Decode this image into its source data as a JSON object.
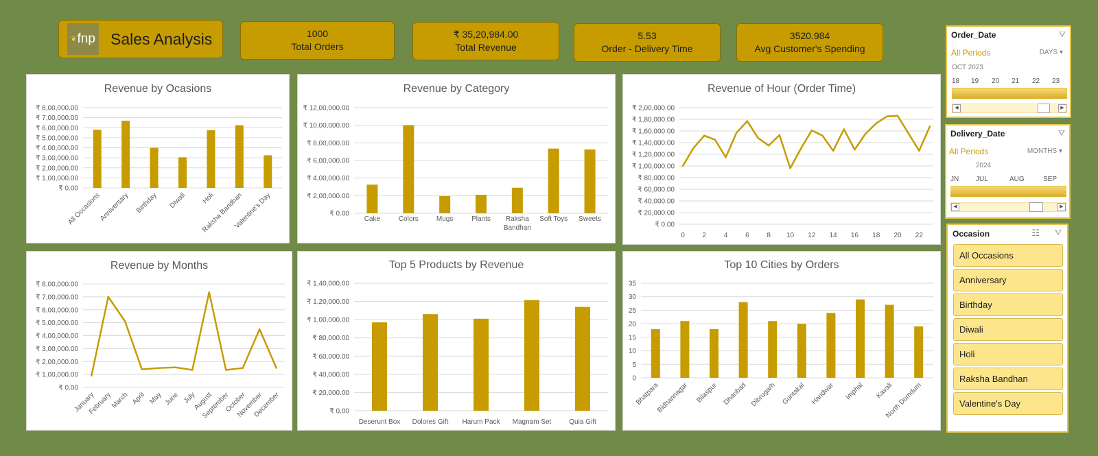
{
  "header": {
    "logo_text": "fnp",
    "title": "Sales Analysis"
  },
  "kpis": [
    {
      "value": "1000",
      "label": "Total Orders"
    },
    {
      "value": "₹ 35,20,984.00",
      "label": "Total Revenue"
    },
    {
      "value": "5.53",
      "label": "Order - Delivery Time"
    },
    {
      "value": "3520.984",
      "label": "Avg Customer's Spending"
    }
  ],
  "chart_data": [
    {
      "id": "occasions",
      "type": "bar",
      "title": "Revenue by Ocasions",
      "categories": [
        "All Occasions",
        "Anniversary",
        "Birthday",
        "Diwali",
        "Holi",
        "Raksha Bandhan",
        "Valentine's Day"
      ],
      "values": [
        580000,
        670000,
        400000,
        305000,
        575000,
        625000,
        325000
      ],
      "yticks": [
        "₹ 0.00",
        "₹ 1,00,000.00",
        "₹ 2,00,000.00",
        "₹ 3,00,000.00",
        "₹ 4,00,000.00",
        "₹ 5,00,000.00",
        "₹ 6,00,000.00",
        "₹ 7,00,000.00",
        "₹ 8,00,000.00"
      ],
      "ylim": [
        0,
        800000
      ],
      "grid": true,
      "color": "#c69c00"
    },
    {
      "id": "category",
      "type": "bar",
      "title": "Revenue by Category",
      "categories": [
        "Cake",
        "Colors",
        "Mugs",
        "Plants",
        "Raksha Bandhan",
        "Soft Toys",
        "Sweets"
      ],
      "values": [
        325000,
        1000000,
        195000,
        210000,
        290000,
        735000,
        725000
      ],
      "yticks": [
        "₹ 0.00",
        "₹ 2,00,000.00",
        "₹ 4,00,000.00",
        "₹ 6,00,000.00",
        "₹ 8,00,000.00",
        "₹ 10,00,000.00",
        "₹ 12,00,000.00"
      ],
      "ylim": [
        0,
        1200000
      ],
      "grid": true,
      "color": "#c69c00"
    },
    {
      "id": "hour",
      "type": "line",
      "title": "Revenue of Hour (Order Time)",
      "x": [
        0,
        1,
        2,
        3,
        4,
        5,
        6,
        7,
        8,
        9,
        10,
        11,
        12,
        13,
        14,
        15,
        16,
        17,
        18,
        19,
        20,
        21,
        22,
        23
      ],
      "values": [
        100000,
        131000,
        152000,
        145000,
        115000,
        157000,
        177000,
        148000,
        135000,
        153000,
        96000,
        130000,
        161000,
        152000,
        126000,
        163000,
        128000,
        155000,
        173000,
        185000,
        186000,
        156000,
        126000,
        168000
      ],
      "xticks": [
        "0",
        "2",
        "4",
        "6",
        "8",
        "10",
        "12",
        "14",
        "16",
        "18",
        "20",
        "22"
      ],
      "yticks": [
        "₹ 0.00",
        "₹ 20,000.00",
        "₹ 40,000.00",
        "₹ 60,000.00",
        "₹ 80,000.00",
        "₹ 1,00,000.00",
        "₹ 1,20,000.00",
        "₹ 1,40,000.00",
        "₹ 1,60,000.00",
        "₹ 1,80,000.00",
        "₹ 2,00,000.00"
      ],
      "ylim": [
        0,
        200000
      ],
      "grid": true,
      "color": "#c69c00"
    },
    {
      "id": "months",
      "type": "line",
      "title": "Revenue by Months",
      "categories": [
        "January",
        "February",
        "March",
        "April",
        "May",
        "June",
        "July",
        "August",
        "September",
        "October",
        "November",
        "December"
      ],
      "values": [
        90000,
        700000,
        510000,
        140000,
        150000,
        155000,
        135000,
        735000,
        135000,
        150000,
        450000,
        150000
      ],
      "yticks": [
        "₹ 0.00",
        "₹ 1,00,000.00",
        "₹ 2,00,000.00",
        "₹ 3,00,000.00",
        "₹ 4,00,000.00",
        "₹ 5,00,000.00",
        "₹ 6,00,000.00",
        "₹ 7,00,000.00",
        "₹ 8,00,000.00"
      ],
      "ylim": [
        0,
        800000
      ],
      "grid": true,
      "color": "#c69c00"
    },
    {
      "id": "products",
      "type": "bar",
      "title": "Top 5 Products by Revenue",
      "categories": [
        "Deserunt Box",
        "Dolores Gift",
        "Harum Pack",
        "Magnam Set",
        "Quia Gift"
      ],
      "values": [
        97000,
        106000,
        101000,
        121500,
        114000
      ],
      "yticks": [
        "₹ 0.00",
        "₹ 20,000.00",
        "₹ 40,000.00",
        "₹ 60,000.00",
        "₹ 80,000.00",
        "₹ 1,00,000.00",
        "₹ 1,20,000.00",
        "₹ 1,40,000.00"
      ],
      "ylim": [
        0,
        140000
      ],
      "grid": true,
      "color": "#c69c00"
    },
    {
      "id": "cities",
      "type": "bar",
      "title": "Top 10 Cities by Orders",
      "categories": [
        "Bhatpara",
        "Bidhannagar",
        "Bilaspur",
        "Dhanbad",
        "Dibrugarh",
        "Guntakal",
        "Haridwar",
        "Imphal",
        "Kavali",
        "North Dumdum"
      ],
      "values": [
        18,
        21,
        18,
        28,
        21,
        20,
        24,
        29,
        27,
        19
      ],
      "yticks": [
        "0",
        "5",
        "10",
        "15",
        "20",
        "25",
        "30",
        "35"
      ],
      "ylim": [
        0,
        35
      ],
      "grid": true,
      "color": "#c69c00"
    }
  ],
  "slicers": {
    "order_date": {
      "title": "Order_Date",
      "all_label": "All Periods",
      "unit": "DAYS",
      "period": "OCT 2023",
      "ticks": [
        "18",
        "19",
        "20",
        "21",
        "22",
        "23"
      ]
    },
    "delivery_date": {
      "title": "Delivery_Date",
      "all_label": "All Periods",
      "unit": "MONTHS",
      "period": "2024",
      "ticks": [
        "JN",
        "JUL",
        "AUG",
        "SEP"
      ]
    },
    "occasion": {
      "title": "Occasion",
      "items": [
        "All Occasions",
        "Anniversary",
        "Birthday",
        "Diwali",
        "Holi",
        "Raksha Bandhan",
        "Valentine's Day"
      ]
    }
  }
}
